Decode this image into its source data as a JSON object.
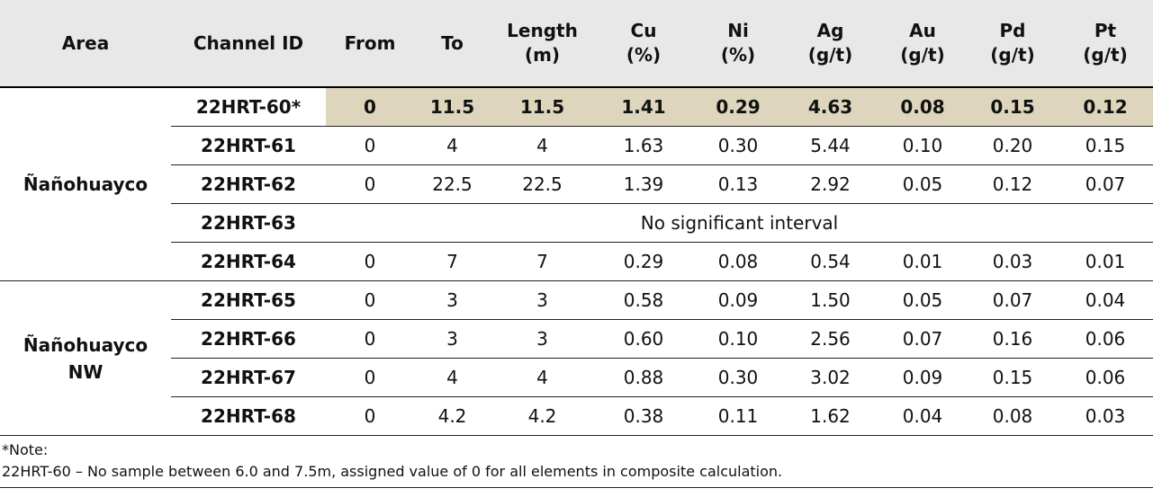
{
  "table": {
    "header": [
      "Area",
      "Channel ID",
      "From",
      "To",
      "Length\n(m)",
      "Cu\n(%)",
      "Ni\n(%)",
      "Ag\n(g/t)",
      "Au\n(g/t)",
      "Pd\n(g/t)",
      "Pt\n(g/t)"
    ],
    "groups": [
      {
        "area": "Ñañohuayco",
        "rows": [
          {
            "channel": "22HRT-60*",
            "highlighted": true,
            "values": [
              "0",
              "11.5",
              "11.5",
              "1.41",
              "0.29",
              "4.63",
              "0.08",
              "0.15",
              "0.12"
            ]
          },
          {
            "channel": "22HRT-61",
            "values": [
              "0",
              "4",
              "4",
              "1.63",
              "0.30",
              "5.44",
              "0.10",
              "0.20",
              "0.15"
            ]
          },
          {
            "channel": "22HRT-62",
            "values": [
              "0",
              "22.5",
              "22.5",
              "1.39",
              "0.13",
              "2.92",
              "0.05",
              "0.12",
              "0.07"
            ]
          },
          {
            "channel": "22HRT-63",
            "remark": "No significant interval"
          },
          {
            "channel": "22HRT-64",
            "values": [
              "0",
              "7",
              "7",
              "0.29",
              "0.08",
              "0.54",
              "0.01",
              "0.03",
              "0.01"
            ]
          }
        ]
      },
      {
        "area": "Ñañohuayco NW",
        "rows": [
          {
            "channel": "22HRT-65",
            "values": [
              "0",
              "3",
              "3",
              "0.58",
              "0.09",
              "1.50",
              "0.05",
              "0.07",
              "0.04"
            ]
          },
          {
            "channel": "22HRT-66",
            "values": [
              "0",
              "3",
              "3",
              "0.60",
              "0.10",
              "2.56",
              "0.07",
              "0.16",
              "0.06"
            ]
          },
          {
            "channel": "22HRT-67",
            "values": [
              "0",
              "4",
              "4",
              "0.88",
              "0.30",
              "3.02",
              "0.09",
              "0.15",
              "0.06"
            ]
          },
          {
            "channel": "22HRT-68",
            "values": [
              "0",
              "4.2",
              "4.2",
              "0.38",
              "0.11",
              "1.62",
              "0.04",
              "0.08",
              "0.03"
            ]
          }
        ]
      }
    ]
  },
  "note": {
    "label": "*Note:",
    "text": "22HRT-60 – No sample between 6.0 and 7.5m, assigned value of 0 for all elements in composite calculation."
  }
}
